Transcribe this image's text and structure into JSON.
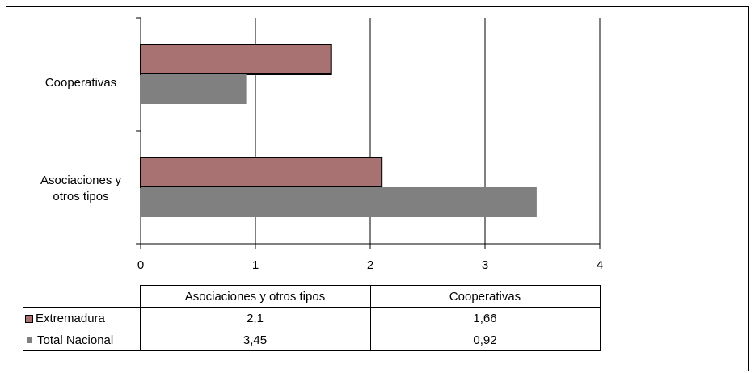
{
  "chart_data": {
    "type": "bar",
    "orientation": "horizontal",
    "categories": [
      "Asociaciones y otros tipos",
      "Cooperativas"
    ],
    "series": [
      {
        "name": "Extremadura",
        "values": [
          2.1,
          1.66
        ],
        "color": "#a87272"
      },
      {
        "name": "Total Nacional",
        "values": [
          3.45,
          0.92
        ],
        "color": "#808080"
      }
    ],
    "xlim": [
      0,
      4
    ],
    "x_ticks": [
      "0",
      "1",
      "2",
      "3",
      "4"
    ],
    "grid": "vertical major gridlines",
    "legend": "data table below chart"
  },
  "labels": {
    "cat_cooperativas": "Cooperativas",
    "cat_asoc_line1": "Asociaciones y",
    "cat_asoc_line2": "otros tipos"
  },
  "table": {
    "headers": [
      "Asociaciones y otros tipos",
      "Cooperativas"
    ],
    "rows": [
      {
        "label": "Extremadura",
        "values": [
          "2,1",
          "1,66"
        ]
      },
      {
        "label": "Total Nacional",
        "values": [
          "3,45",
          "0,92"
        ]
      }
    ]
  }
}
